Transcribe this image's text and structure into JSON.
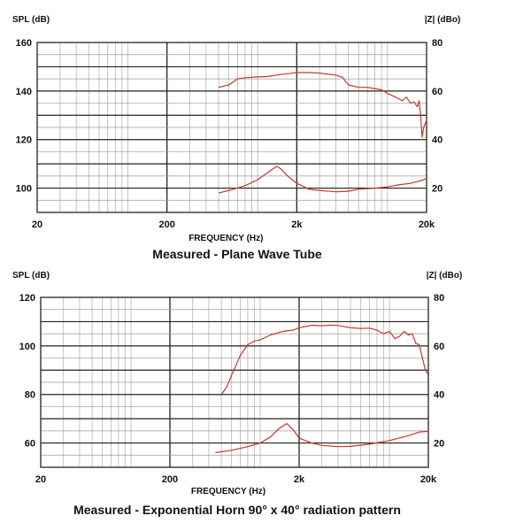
{
  "chart_data": [
    {
      "type": "line",
      "xlabel": "FREQUENCY (Hz)",
      "ylabel_left": "SPL (dB)",
      "ylabel_right": "|Z| (dBo)",
      "caption": "Measured - Plane Wave Tube",
      "x_scale": "log",
      "xlim": [
        20,
        20000
      ],
      "x_ticks": [
        {
          "v": 20,
          "label": "20"
        },
        {
          "v": 200,
          "label": "200"
        },
        {
          "v": 2000,
          "label": "2k"
        },
        {
          "v": 20000,
          "label": "20k"
        }
      ],
      "ylim_left": [
        90,
        160
      ],
      "ylim_right": [
        10,
        80
      ],
      "y_ticks_left": [
        {
          "v": 100,
          "label": "100"
        },
        {
          "v": 120,
          "label": "120"
        },
        {
          "v": 140,
          "label": "140"
        },
        {
          "v": 160,
          "label": "160"
        }
      ],
      "y_ticks_right": [
        {
          "v": 20,
          "label": "20"
        },
        {
          "v": 40,
          "label": "40"
        },
        {
          "v": 60,
          "label": "60"
        },
        {
          "v": 80,
          "label": "80"
        }
      ],
      "grid": true,
      "series_color": "#c0392b",
      "series": [
        {
          "axis": "left",
          "x": [
            500,
            600,
            700,
            800,
            1000,
            1200,
            1500,
            1800,
            2000,
            2500,
            3000,
            3500,
            4000,
            4500,
            5000,
            6000,
            7000,
            8000,
            9000,
            10000,
            11000,
            12000,
            13000,
            14000,
            15000,
            16000,
            17000,
            17500,
            18000,
            18500,
            19000,
            20000
          ],
          "y": [
            141.5,
            142.5,
            145.0,
            145.5,
            145.8,
            146.0,
            146.8,
            147.3,
            147.6,
            147.6,
            147.4,
            146.9,
            146.6,
            145.6,
            142.5,
            141.5,
            141.5,
            141.0,
            140.5,
            139.0,
            138.0,
            137.0,
            136.0,
            137.5,
            135.0,
            135.5,
            133.5,
            136.0,
            130.0,
            121.0,
            125.0,
            128.0
          ]
        },
        {
          "axis": "right",
          "x": [
            500,
            600,
            800,
            1000,
            1200,
            1400,
            1500,
            1700,
            2000,
            2500,
            3000,
            4000,
            5000,
            6000,
            8000,
            10000,
            12000,
            15000,
            18000,
            20000
          ],
          "y": [
            18.0,
            19.0,
            21.0,
            23.5,
            26.5,
            29.0,
            28.0,
            25.0,
            22.0,
            19.5,
            19.0,
            18.5,
            18.7,
            19.6,
            20.0,
            20.5,
            21.3,
            22.0,
            23.0,
            24.0
          ]
        }
      ]
    },
    {
      "type": "line",
      "xlabel": "FREQUENCY (Hz)",
      "ylabel_left": "SPL (dB)",
      "ylabel_right": "|Z| (dBo)",
      "caption": "Measured - Exponential Horn 90° x 40° radiation pattern",
      "x_scale": "log",
      "xlim": [
        20,
        20000
      ],
      "x_ticks": [
        {
          "v": 20,
          "label": "20"
        },
        {
          "v": 200,
          "label": "200"
        },
        {
          "v": 2000,
          "label": "2k"
        },
        {
          "v": 20000,
          "label": "20k"
        }
      ],
      "ylim_left": [
        50,
        120
      ],
      "ylim_right": [
        10,
        80
      ],
      "y_ticks_left": [
        {
          "v": 60,
          "label": "60"
        },
        {
          "v": 80,
          "label": "80"
        },
        {
          "v": 100,
          "label": "100"
        },
        {
          "v": 120,
          "label": "120"
        }
      ],
      "y_ticks_right": [
        {
          "v": 20,
          "label": "20"
        },
        {
          "v": 40,
          "label": "40"
        },
        {
          "v": 60,
          "label": "60"
        },
        {
          "v": 80,
          "label": "80"
        }
      ],
      "grid": true,
      "series_color": "#c0392b",
      "series": [
        {
          "axis": "left",
          "x": [
            500,
            550,
            600,
            650,
            700,
            800,
            900,
            1000,
            1200,
            1500,
            1800,
            2000,
            2500,
            3000,
            3500,
            4000,
            5000,
            6000,
            7000,
            8000,
            9000,
            10000,
            11000,
            12000,
            13000,
            14000,
            15000,
            16000,
            17000,
            18000,
            19000,
            20000
          ],
          "y": [
            80.0,
            83.0,
            88.0,
            92.0,
            96.0,
            100.5,
            102.0,
            102.5,
            104.5,
            106.0,
            106.5,
            107.5,
            108.5,
            108.3,
            108.6,
            108.4,
            107.5,
            107.2,
            107.3,
            106.5,
            105.0,
            106.0,
            103.0,
            104.0,
            106.0,
            104.5,
            105.0,
            101.0,
            100.5,
            95.0,
            90.0,
            88.0
          ]
        },
        {
          "axis": "right",
          "x": [
            450,
            600,
            800,
            1000,
            1200,
            1400,
            1600,
            1800,
            2000,
            2500,
            3000,
            4000,
            5000,
            7000,
            10000,
            14000,
            17000,
            20000
          ],
          "y": [
            16.0,
            17.0,
            18.5,
            20.0,
            22.5,
            26.0,
            28.0,
            25.5,
            22.0,
            20.0,
            19.0,
            18.5,
            18.6,
            19.5,
            21.0,
            23.0,
            24.5,
            24.8
          ]
        }
      ]
    }
  ]
}
